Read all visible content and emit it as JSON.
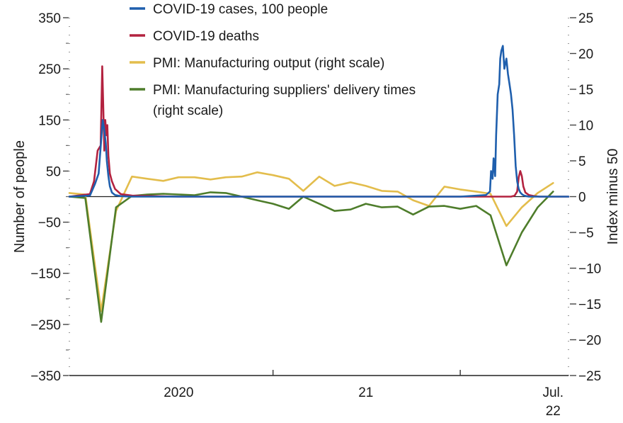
{
  "chart_data": {
    "type": "line",
    "y_left": {
      "label": "Number of people",
      "ylim": [
        -350,
        350
      ],
      "major_ticks": [
        350,
        250,
        150,
        50,
        -50,
        -150,
        -250,
        -350
      ],
      "major_tick_labels": [
        "350",
        "250",
        "150",
        "50",
        "−50",
        "−150",
        "−250",
        "−350"
      ],
      "minor_ticks": [
        300,
        200,
        100,
        0,
        -100,
        -200,
        -300
      ]
    },
    "y_right": {
      "label": "Index minus 50",
      "ylim": [
        -25,
        25
      ],
      "ticks": [
        25,
        20,
        15,
        10,
        5,
        0,
        -5,
        -10,
        -15,
        -20,
        -25
      ],
      "tick_labels": [
        "25",
        "20",
        "15",
        "10",
        "5",
        "0",
        "−5",
        "−10",
        "−15",
        "−20",
        "−25"
      ]
    },
    "x_axis": {
      "xlim": [
        "2019-12-01",
        "2022-07-31"
      ],
      "boundaries": [
        "2021-01-01",
        "2022-01-01"
      ],
      "labels": [
        {
          "lines": [
            "2020"
          ],
          "at": "2020-07-01"
        },
        {
          "lines": [
            "21"
          ],
          "at": "2021-07-01"
        },
        {
          "lines": [
            "Jul.",
            "22"
          ],
          "at": "2022-07-01"
        }
      ]
    },
    "legend_position": "top",
    "series": [
      {
        "name": "COVID-19 cases, 100 people",
        "axis": "left",
        "color": "#1f5fad",
        "x": [
          "2019-12-01",
          "2020-01-10",
          "2020-01-20",
          "2020-01-27",
          "2020-02-01",
          "2020-02-04",
          "2020-02-07",
          "2020-02-10",
          "2020-02-12",
          "2020-02-15",
          "2020-02-18",
          "2020-02-22",
          "2020-02-28",
          "2020-03-10",
          "2020-04-01",
          "2020-07-01",
          "2021-01-01",
          "2021-07-01",
          "2022-01-01",
          "2022-02-20",
          "2022-02-28",
          "2022-03-02",
          "2022-03-05",
          "2022-03-07",
          "2022-03-10",
          "2022-03-12",
          "2022-03-15",
          "2022-03-18",
          "2022-03-20",
          "2022-03-22",
          "2022-03-25",
          "2022-03-28",
          "2022-04-01",
          "2022-04-04",
          "2022-04-07",
          "2022-04-10",
          "2022-04-13",
          "2022-04-16",
          "2022-04-19",
          "2022-04-22",
          "2022-04-25",
          "2022-04-28",
          "2022-05-02",
          "2022-05-06",
          "2022-05-10",
          "2022-05-15",
          "2022-05-20",
          "2022-06-01",
          "2022-07-31"
        ],
        "values": [
          0,
          2,
          25,
          45,
          110,
          150,
          130,
          105,
          70,
          40,
          20,
          8,
          3,
          1,
          0,
          0,
          0,
          0,
          0,
          3,
          10,
          50,
          35,
          75,
          40,
          120,
          200,
          220,
          270,
          285,
          295,
          250,
          270,
          240,
          220,
          200,
          170,
          120,
          60,
          30,
          15,
          8,
          4,
          2,
          1,
          0,
          0,
          0,
          0
        ]
      },
      {
        "name": "COVID-19 deaths",
        "axis": "left",
        "color": "#b3223f",
        "x": [
          "2019-12-01",
          "2020-01-10",
          "2020-01-18",
          "2020-01-25",
          "2020-01-31",
          "2020-02-03",
          "2020-02-05",
          "2020-02-07",
          "2020-02-09",
          "2020-02-11",
          "2020-02-13",
          "2020-02-15",
          "2020-02-18",
          "2020-02-22",
          "2020-02-28",
          "2020-03-10",
          "2020-04-01",
          "2020-07-01",
          "2021-07-01",
          "2022-01-01",
          "2022-04-10",
          "2022-04-17",
          "2022-04-22",
          "2022-04-25",
          "2022-04-28",
          "2022-05-01",
          "2022-05-04",
          "2022-05-08",
          "2022-05-15",
          "2022-05-25",
          "2022-06-05",
          "2022-07-31"
        ],
        "values": [
          0,
          5,
          30,
          90,
          100,
          255,
          180,
          90,
          150,
          120,
          140,
          80,
          45,
          30,
          15,
          5,
          2,
          0,
          0,
          0,
          0,
          2,
          10,
          38,
          50,
          40,
          20,
          8,
          3,
          1,
          0,
          0
        ]
      },
      {
        "name": "PMI: Manufacturing output (right scale)",
        "axis": "right",
        "color": "#e3bd4c",
        "x": [
          "2019-12-01",
          "2020-01-01",
          "2020-02-01",
          "2020-03-01",
          "2020-04-01",
          "2020-05-01",
          "2020-06-01",
          "2020-07-01",
          "2020-08-01",
          "2020-09-01",
          "2020-10-01",
          "2020-11-01",
          "2020-12-01",
          "2021-01-01",
          "2021-02-01",
          "2021-03-01",
          "2021-04-01",
          "2021-05-01",
          "2021-06-01",
          "2021-07-01",
          "2021-08-01",
          "2021-09-01",
          "2021-10-01",
          "2021-11-01",
          "2021-12-01",
          "2022-01-01",
          "2022-02-01",
          "2022-03-01",
          "2022-04-01",
          "2022-05-01",
          "2022-06-01",
          "2022-07-01"
        ],
        "values": [
          0.5,
          0.3,
          -16,
          -2,
          2.8,
          2.5,
          2.2,
          2.7,
          2.7,
          2.4,
          2.7,
          2.8,
          3.4,
          3.0,
          2.5,
          0.8,
          2.8,
          1.5,
          2.0,
          1.5,
          0.8,
          0.7,
          -0.5,
          -1.3,
          1.4,
          1.0,
          0.7,
          0.4,
          -4.1,
          -1.5,
          0.5,
          1.9
        ]
      },
      {
        "name": "PMI: Manufacturing suppliers' delivery times (right scale)",
        "axis": "right",
        "color": "#4e7d2b",
        "x": [
          "2019-12-01",
          "2020-01-01",
          "2020-02-01",
          "2020-03-01",
          "2020-04-01",
          "2020-05-01",
          "2020-06-01",
          "2020-07-01",
          "2020-08-01",
          "2020-09-01",
          "2020-10-01",
          "2020-11-01",
          "2020-12-01",
          "2021-01-01",
          "2021-02-01",
          "2021-03-01",
          "2021-04-01",
          "2021-05-01",
          "2021-06-01",
          "2021-07-01",
          "2021-08-01",
          "2021-09-01",
          "2021-10-01",
          "2021-11-01",
          "2021-12-01",
          "2022-01-01",
          "2022-02-01",
          "2022-03-01",
          "2022-04-01",
          "2022-05-01",
          "2022-06-01",
          "2022-07-01"
        ],
        "values": [
          0,
          -0.2,
          -17.5,
          -1.5,
          0.1,
          0.3,
          0.4,
          0.3,
          0.2,
          0.6,
          0.5,
          0,
          -0.5,
          -1.0,
          -1.7,
          0,
          -1.0,
          -2.0,
          -1.8,
          -1.0,
          -1.5,
          -1.4,
          -2.5,
          -1.4,
          -1.3,
          -1.7,
          -1.3,
          -2.6,
          -9.6,
          -5.0,
          -1.5,
          0.7
        ]
      }
    ]
  }
}
